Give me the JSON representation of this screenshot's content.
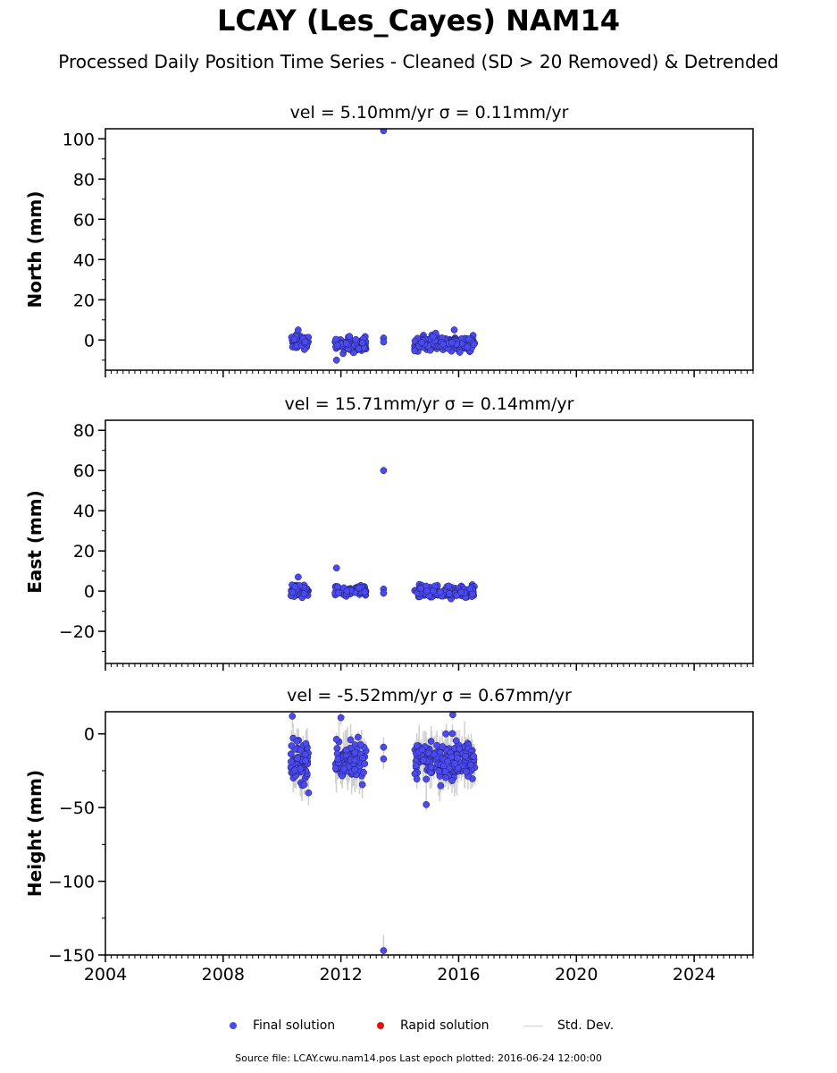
{
  "title": "LCAY (Les_Cayes) NAM14",
  "subtitle": "Processed Daily Position Time Series - Cleaned (SD > 20 Removed) & Detrended",
  "legend": {
    "final_label": "Final solution",
    "rapid_label": "Rapid solution",
    "std_label": "Std. Dev."
  },
  "footer": "Source file: LCAY.cwu.nam14.pos  Last epoch plotted: 2016-06-24 12:00:00",
  "colors": {
    "final": "#4a4af0",
    "rapid": "#e01010",
    "std": "#cfcfcf"
  },
  "chart_data": [
    {
      "type": "scatter",
      "title": "vel = 5.10mm/yr   σ = 0.11mm/yr",
      "ylabel": "North (mm)",
      "xlim": [
        2004,
        2026
      ],
      "ylim": [
        -15,
        105
      ],
      "xticks": [
        2004,
        2008,
        2012,
        2016,
        2020,
        2024
      ],
      "yticks": [
        0,
        20,
        40,
        60,
        80,
        100
      ],
      "x_tick_labels_shown": false,
      "clusters": [
        {
          "x": [
            2010.3,
            2010.9
          ],
          "y": [
            -6,
            4
          ],
          "n": 60
        },
        {
          "x": [
            2011.8,
            2012.85
          ],
          "y": [
            -8,
            3
          ],
          "n": 80
        },
        {
          "x": [
            2014.5,
            2016.55
          ],
          "y": [
            -7,
            4
          ],
          "n": 170
        }
      ],
      "points": [
        {
          "x": 2013.45,
          "y": 104
        },
        {
          "x": 2013.45,
          "y": 1
        },
        {
          "x": 2013.45,
          "y": -1
        },
        {
          "x": 2011.85,
          "y": -10
        },
        {
          "x": 2010.55,
          "y": 5
        },
        {
          "x": 2015.85,
          "y": 5
        }
      ]
    },
    {
      "type": "scatter",
      "title": "vel = 15.71mm/yr   σ = 0.14mm/yr",
      "ylabel": "East (mm)",
      "xlim": [
        2004,
        2026
      ],
      "ylim": [
        -36,
        85
      ],
      "xticks": [
        2004,
        2008,
        2012,
        2016,
        2020,
        2024
      ],
      "yticks": [
        -20,
        0,
        20,
        40,
        60,
        80
      ],
      "x_tick_labels_shown": false,
      "clusters": [
        {
          "x": [
            2010.3,
            2010.9
          ],
          "y": [
            -5,
            5
          ],
          "n": 60
        },
        {
          "x": [
            2011.8,
            2012.85
          ],
          "y": [
            -4,
            4
          ],
          "n": 80
        },
        {
          "x": [
            2014.5,
            2016.55
          ],
          "y": [
            -5,
            4
          ],
          "n": 170
        }
      ],
      "points": [
        {
          "x": 2013.45,
          "y": 60
        },
        {
          "x": 2013.45,
          "y": 1
        },
        {
          "x": 2013.45,
          "y": -1
        },
        {
          "x": 2011.85,
          "y": 11.5
        },
        {
          "x": 2010.55,
          "y": 7
        }
      ]
    },
    {
      "type": "scatter",
      "title": "vel = -5.52mm/yr   σ = 0.67mm/yr",
      "ylabel": "Height (mm)",
      "xlim": [
        2004,
        2026
      ],
      "ylim": [
        -150,
        15
      ],
      "xticks": [
        2004,
        2008,
        2012,
        2016,
        2020,
        2024
      ],
      "yticks": [
        -150,
        -100,
        -50,
        0
      ],
      "x_tick_labels_shown": true,
      "clusters": [
        {
          "x": [
            2010.3,
            2010.9
          ],
          "y": [
            -38,
            3
          ],
          "n": 70
        },
        {
          "x": [
            2011.8,
            2012.85
          ],
          "y": [
            -38,
            3
          ],
          "n": 90
        },
        {
          "x": [
            2014.5,
            2016.55
          ],
          "y": [
            -38,
            3
          ],
          "n": 190
        }
      ],
      "points": [
        {
          "x": 2013.45,
          "y": -9
        },
        {
          "x": 2013.45,
          "y": -17
        },
        {
          "x": 2013.45,
          "y": -147
        },
        {
          "x": 2010.35,
          "y": 12
        },
        {
          "x": 2012.0,
          "y": 11
        },
        {
          "x": 2015.8,
          "y": 13
        },
        {
          "x": 2014.9,
          "y": -48
        },
        {
          "x": 2010.9,
          "y": -40
        }
      ]
    }
  ]
}
